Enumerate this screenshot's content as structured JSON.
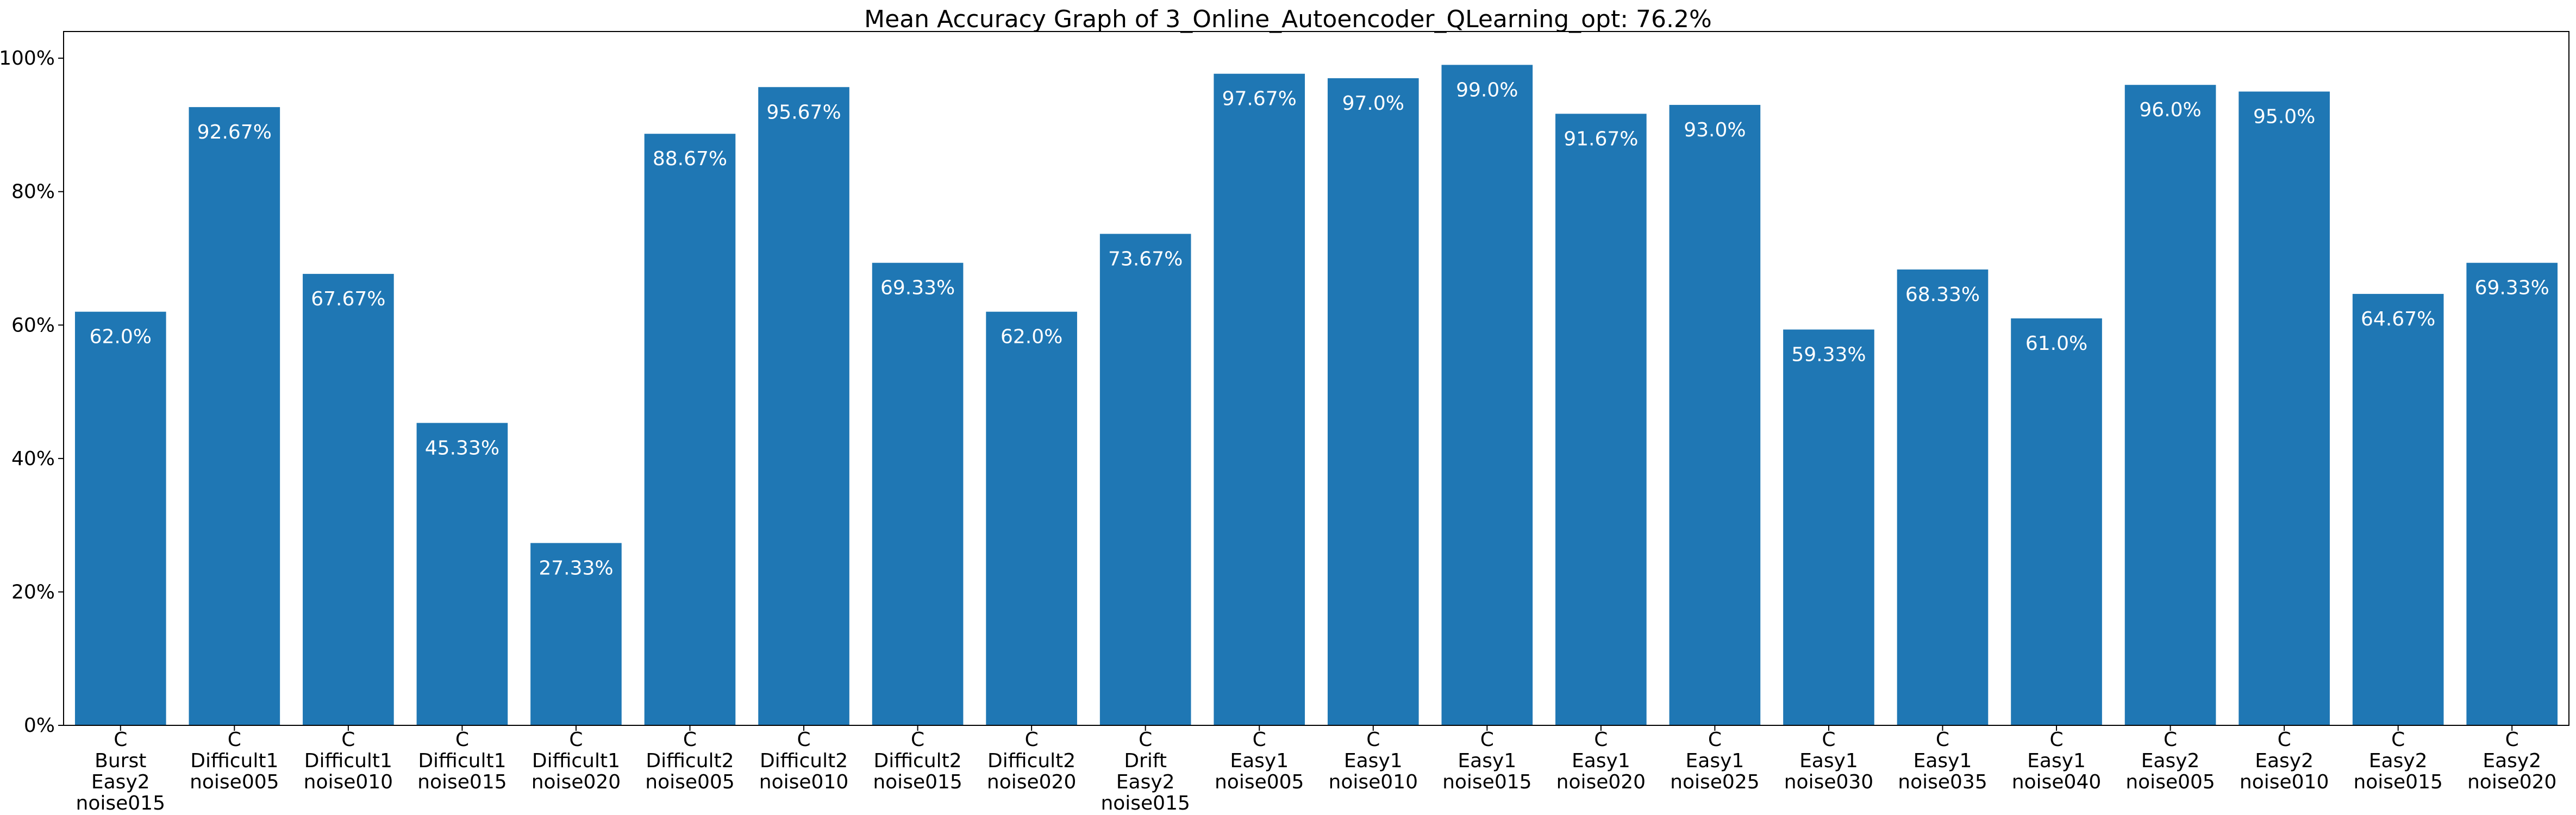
{
  "chart_data": {
    "type": "bar",
    "title": "Mean Accuracy Graph of 3_Online_Autoencoder_QLearning_opt: 76.2%",
    "xlabel": "",
    "ylabel": "",
    "ylim": [
      0,
      104
    ],
    "y_ticks": [
      0,
      20,
      40,
      60,
      80,
      100
    ],
    "y_tick_labels": [
      "0%",
      "20%",
      "40%",
      "60%",
      "80%",
      "100%"
    ],
    "grid": false,
    "bar_color": "#1f77b4",
    "label_color": "#ffffff",
    "categories": [
      [
        "C",
        "Burst",
        "Easy2",
        "noise015"
      ],
      [
        "C",
        "Difficult1",
        "noise005"
      ],
      [
        "C",
        "Difficult1",
        "noise010"
      ],
      [
        "C",
        "Difficult1",
        "noise015"
      ],
      [
        "C",
        "Difficult1",
        "noise020"
      ],
      [
        "C",
        "Difficult2",
        "noise005"
      ],
      [
        "C",
        "Difficult2",
        "noise010"
      ],
      [
        "C",
        "Difficult2",
        "noise015"
      ],
      [
        "C",
        "Difficult2",
        "noise020"
      ],
      [
        "C",
        "Drift",
        "Easy2",
        "noise015"
      ],
      [
        "C",
        "Easy1",
        "noise005"
      ],
      [
        "C",
        "Easy1",
        "noise010"
      ],
      [
        "C",
        "Easy1",
        "noise015"
      ],
      [
        "C",
        "Easy1",
        "noise020"
      ],
      [
        "C",
        "Easy1",
        "noise025"
      ],
      [
        "C",
        "Easy1",
        "noise030"
      ],
      [
        "C",
        "Easy1",
        "noise035"
      ],
      [
        "C",
        "Easy1",
        "noise040"
      ],
      [
        "C",
        "Easy2",
        "noise005"
      ],
      [
        "C",
        "Easy2",
        "noise010"
      ],
      [
        "C",
        "Easy2",
        "noise015"
      ],
      [
        "C",
        "Easy2",
        "noise020"
      ]
    ],
    "values": [
      62.0,
      92.67,
      67.67,
      45.33,
      27.33,
      88.67,
      95.67,
      69.33,
      62.0,
      73.67,
      97.67,
      97.0,
      99.0,
      91.67,
      93.0,
      59.33,
      68.33,
      61.0,
      96.0,
      95.0,
      64.67,
      69.33
    ],
    "value_labels": [
      "62.0%",
      "92.67%",
      "67.67%",
      "45.33%",
      "27.33%",
      "88.67%",
      "95.67%",
      "69.33%",
      "62.0%",
      "73.67%",
      "97.67%",
      "97.0%",
      "99.0%",
      "91.67%",
      "93.0%",
      "59.33%",
      "68.33%",
      "61.0%",
      "96.0%",
      "95.0%",
      "64.67%",
      "69.33%"
    ]
  }
}
